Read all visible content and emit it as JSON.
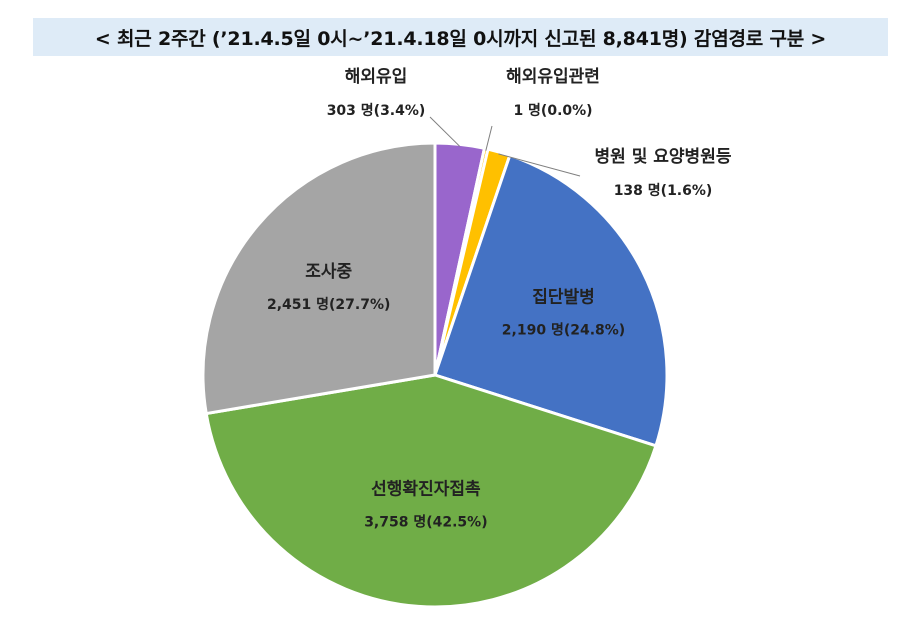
{
  "chart_data": {
    "type": "pie",
    "title": "< 최근 2주간 (’21.4.5일 0시~’21.4.18일 0시까지 신고된 8,841명) 감염경로 구분 >",
    "slices": [
      {
        "label": "해외유입",
        "value": 303,
        "value_text": "303 명(3.4%)",
        "color": "#9966cc"
      },
      {
        "label": "해외유입관련",
        "value": 1,
        "value_text": "1 명(0.0%)",
        "color": "#ffc000"
      },
      {
        "label": "병원 및 요양병원등",
        "value": 138,
        "value_text": "138 명(1.6%)",
        "color": "#ffc000"
      },
      {
        "label": "집단발병",
        "value": 2190,
        "value_text": "2,190 명(24.8%)",
        "color": "#4472c4"
      },
      {
        "label": "선행확진자접촉",
        "value": 3758,
        "value_text": "3,758 명(42.5%)",
        "color": "#70ad47"
      },
      {
        "label": "조사중",
        "value": 2451,
        "value_text": "2,451 명(27.7%)",
        "color": "#a5a5a5"
      }
    ]
  }
}
